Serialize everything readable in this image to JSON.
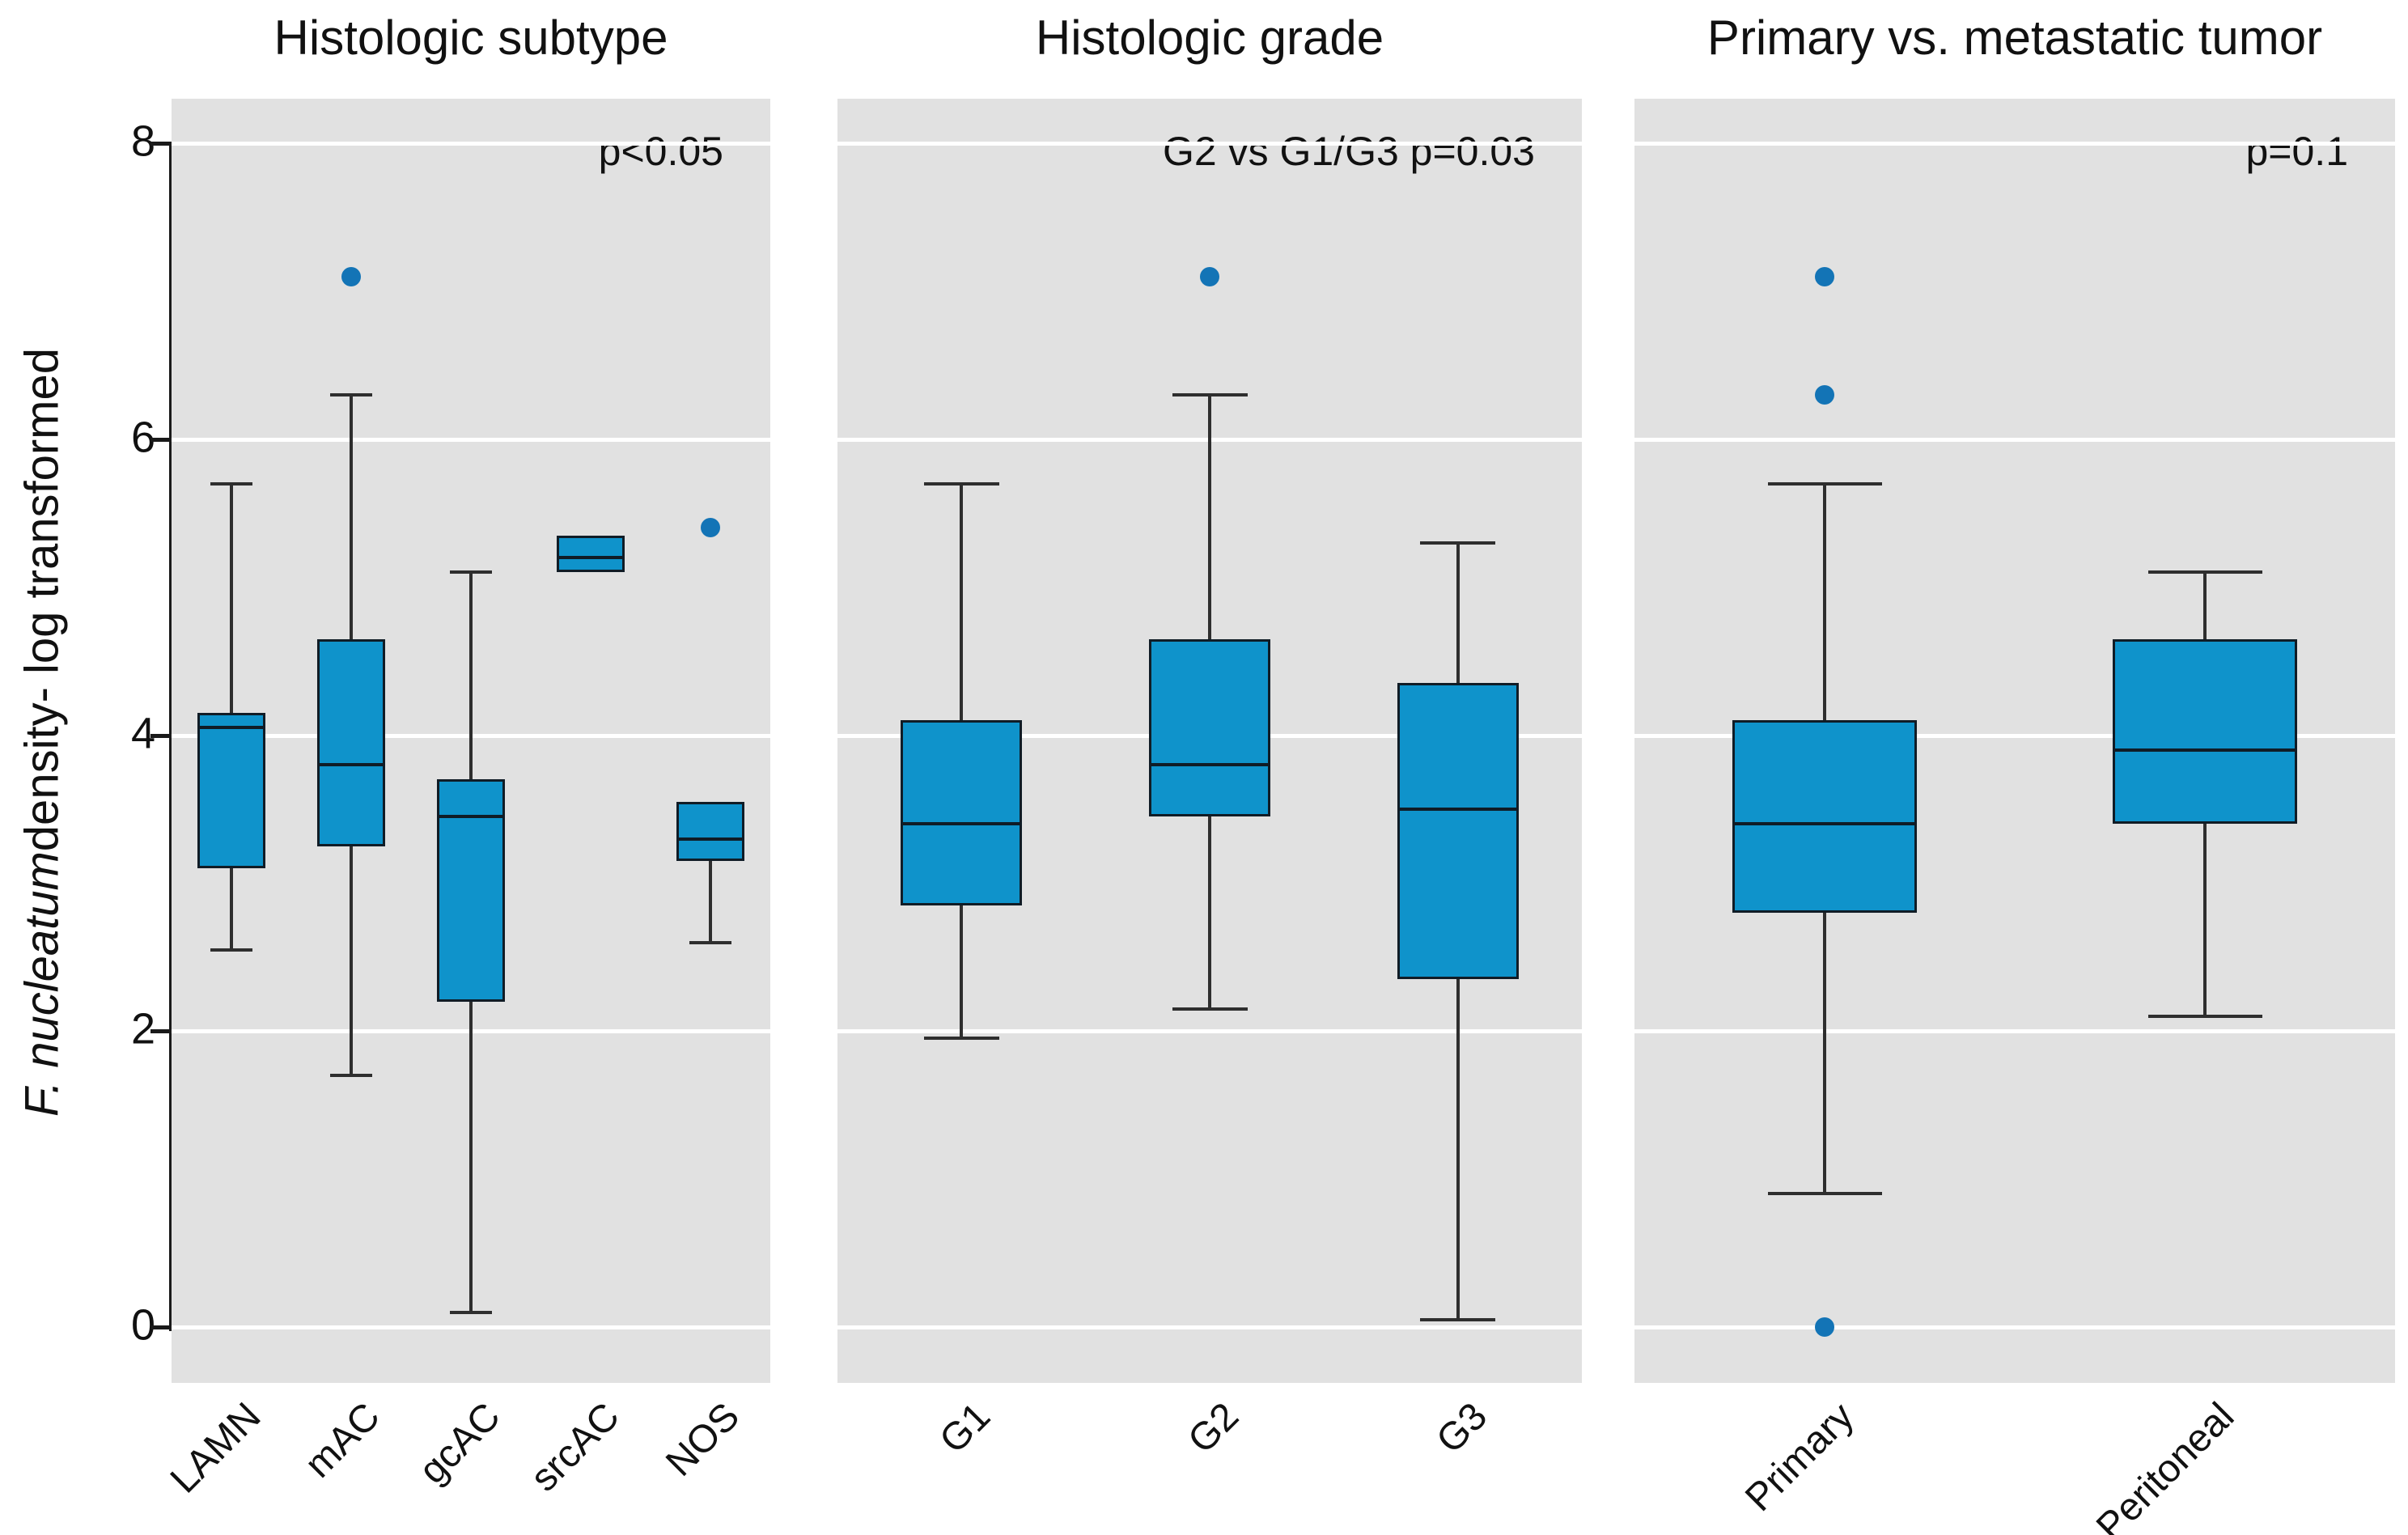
{
  "chart_data": {
    "type": "boxplot",
    "ylabel_italic_part": "F. nucleatum",
    "ylabel_regular_part": "density- log transformed",
    "ylim": [
      -0.4,
      8.3
    ],
    "y_ticks": [
      8,
      6,
      4,
      2,
      0
    ],
    "grid": "horizontal white gridlines every 2 units on gray panels",
    "legend": "none",
    "panels": [
      {
        "title": "Histologic subtype",
        "annotation": "p<0.05",
        "categories": [
          "LAMN",
          "mAC",
          "gcAC",
          "srcAC",
          "NOS"
        ],
        "series": [
          {
            "name": "LAMN",
            "whisker_low": 2.55,
            "q1": 3.1,
            "median": 4.05,
            "q3": 4.15,
            "whisker_high": 5.7,
            "outliers": []
          },
          {
            "name": "mAC",
            "whisker_low": 1.7,
            "q1": 3.25,
            "median": 3.8,
            "q3": 4.65,
            "whisker_high": 6.3,
            "outliers": [
              7.1
            ]
          },
          {
            "name": "gcAC",
            "whisker_low": 0.1,
            "q1": 2.2,
            "median": 3.45,
            "q3": 3.7,
            "whisker_high": 5.1,
            "outliers": []
          },
          {
            "name": "srcAC",
            "whisker_low": 5.1,
            "q1": 5.1,
            "median": 5.2,
            "q3": 5.35,
            "whisker_high": 5.35,
            "outliers": []
          },
          {
            "name": "NOS",
            "whisker_low": 2.6,
            "q1": 3.15,
            "median": 3.3,
            "q3": 3.55,
            "whisker_high": 3.55,
            "outliers": [
              5.4
            ]
          }
        ]
      },
      {
        "title": "Histologic grade",
        "annotation": "G2 vs G1/G3 p=0.03",
        "categories": [
          "G1",
          "G2",
          "G3"
        ],
        "series": [
          {
            "name": "G1",
            "whisker_low": 1.95,
            "q1": 2.85,
            "median": 3.4,
            "q3": 4.1,
            "whisker_high": 5.7,
            "outliers": []
          },
          {
            "name": "G2",
            "whisker_low": 2.15,
            "q1": 3.45,
            "median": 3.8,
            "q3": 4.65,
            "whisker_high": 6.3,
            "outliers": [
              7.1
            ]
          },
          {
            "name": "G3",
            "whisker_low": 0.05,
            "q1": 2.35,
            "median": 3.5,
            "q3": 4.35,
            "whisker_high": 5.3,
            "outliers": []
          }
        ]
      },
      {
        "title": "Primary vs. metastatic tumor",
        "annotation": "p=0.1",
        "categories": [
          "Primary",
          "Peritoneal"
        ],
        "series": [
          {
            "name": "Primary",
            "whisker_low": 0.9,
            "q1": 2.8,
            "median": 3.4,
            "q3": 4.1,
            "whisker_high": 5.7,
            "outliers": [
              7.1,
              6.3,
              0.0
            ]
          },
          {
            "name": "Peritoneal",
            "whisker_low": 2.1,
            "q1": 3.4,
            "median": 3.9,
            "q3": 4.65,
            "whisker_high": 5.1,
            "outliers": []
          }
        ]
      }
    ],
    "colors": {
      "panel_background": "#e1e1e1",
      "gridline": "#ffffff",
      "box_fill": "#0f93cb",
      "box_border": "#101c26",
      "whisker": "#2e2e2e",
      "outlier_dot": "#1374b6",
      "text": "#111111"
    }
  }
}
